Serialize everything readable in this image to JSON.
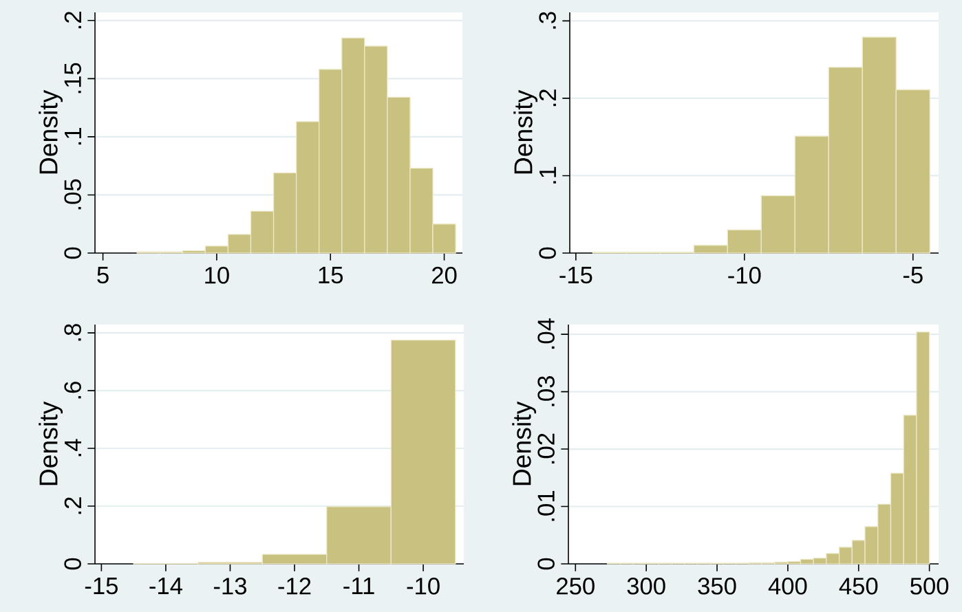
{
  "chart_data": [
    {
      "type": "histogram",
      "ylabel": "Density",
      "color": "#c9c17f",
      "grid": "y",
      "bins": [
        6.5,
        7.5,
        8.5,
        9.5,
        10.5,
        11.5,
        12.5,
        13.5,
        14.5,
        15.5,
        16.5,
        17.5,
        18.5,
        19.5,
        20.5
      ],
      "values": [
        0.001,
        0.001,
        0.002,
        0.006,
        0.016,
        0.036,
        0.069,
        0.113,
        0.158,
        0.185,
        0.178,
        0.134,
        0.073,
        0.025
      ],
      "xlim": [
        4.65,
        20.8
      ],
      "ylim": [
        0,
        0.207
      ],
      "xticks": [
        5,
        10,
        15,
        20
      ],
      "yticks": [
        0,
        {
          "value": 0.05,
          "label": ".05"
        },
        {
          "value": 0.1,
          "label": ".1"
        },
        {
          "value": 0.15,
          "label": ".15"
        },
        {
          "value": 0.2,
          "label": ".2"
        }
      ]
    },
    {
      "type": "histogram",
      "ylabel": "Density",
      "color": "#c9c17f",
      "grid": "y",
      "bins": [
        -14.5,
        -13.5,
        -12.5,
        -11.5,
        -10.5,
        -9.5,
        -8.5,
        -7.5,
        -6.5,
        -5.5,
        -4.5
      ],
      "values": [
        0.001,
        0.001,
        0.001,
        0.01,
        0.03,
        0.074,
        0.151,
        0.24,
        0.279,
        0.211
      ],
      "xlim": [
        -15.18,
        -4.24
      ],
      "ylim": [
        0,
        0.311
      ],
      "xticks": [
        -15,
        -10,
        -5
      ],
      "yticks": [
        0,
        {
          "value": 0.1,
          "label": ".1"
        },
        {
          "value": 0.2,
          "label": ".2"
        },
        {
          "value": 0.3,
          "label": ".3"
        }
      ]
    },
    {
      "type": "histogram",
      "ylabel": "Density",
      "color": "#c9c17f",
      "grid": "y",
      "bins": [
        -14.5,
        -13.5,
        -12.5,
        -11.5,
        -10.5,
        -9.5
      ],
      "values": [
        0.001,
        0.005,
        0.033,
        0.198,
        0.775
      ],
      "xlim": [
        -15.1,
        -9.37
      ],
      "ylim": [
        0,
        0.829
      ],
      "xticks": [
        -15,
        -14,
        -13,
        -12,
        -11,
        -10
      ],
      "yticks": [
        0,
        {
          "value": 0.2,
          "label": ".2"
        },
        {
          "value": 0.4,
          "label": ".4"
        },
        {
          "value": 0.6,
          "label": ".6"
        },
        {
          "value": 0.8,
          "label": ".8"
        }
      ]
    },
    {
      "type": "histogram",
      "ylabel": "Density",
      "color": "#c9c17f",
      "grid": "y",
      "bins": [
        272.5,
        281.6,
        290.7,
        299.8,
        308.9,
        318,
        327.1,
        336.2,
        345.3,
        354.4,
        363.5,
        372.6,
        381.7,
        390.8,
        399.9,
        409,
        418.1,
        427.2,
        436.3,
        445.4,
        454.5,
        463.6,
        472.7,
        481.8,
        490.9,
        500
      ],
      "values": [
        0.0001,
        0.0001,
        0.0001,
        0.0001,
        0.0001,
        0.0001,
        0.0001,
        0.0001,
        0.0001,
        0.0001,
        0.0001,
        0.0002,
        0.0002,
        0.0003,
        0.0004,
        0.0008,
        0.001,
        0.0018,
        0.0029,
        0.0041,
        0.0065,
        0.0104,
        0.0158,
        0.0259,
        0.0404
      ],
      "xlim": [
        245,
        506.5
      ],
      "ylim": [
        0,
        0.0417
      ],
      "xticks": [
        250,
        300,
        350,
        400,
        450,
        500
      ],
      "yticks": [
        0,
        {
          "value": 0.01,
          "label": ".01"
        },
        {
          "value": 0.02,
          "label": ".02"
        },
        {
          "value": 0.03,
          "label": ".03"
        },
        {
          "value": 0.04,
          "label": ".04"
        }
      ]
    }
  ]
}
